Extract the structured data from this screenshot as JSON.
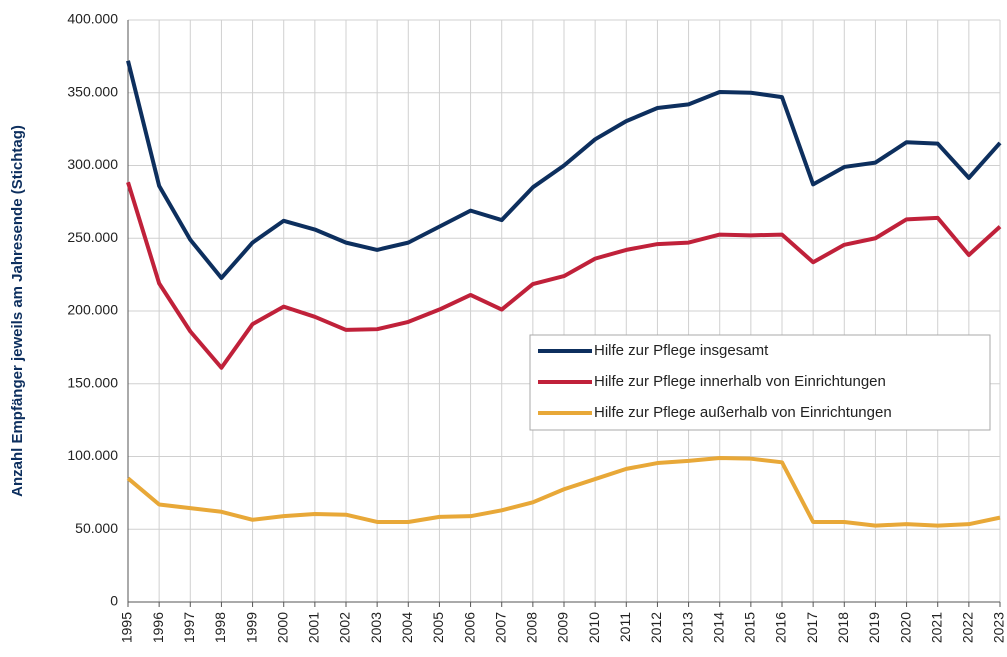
{
  "chart_data": {
    "type": "line",
    "y_label": "Anzahl Empfänger jeweils am Jahresende (Stichtag)",
    "categories": [
      "1995",
      "1996",
      "1997",
      "1998",
      "1999",
      "2000",
      "2001",
      "2002",
      "2003",
      "2004",
      "2005",
      "2006",
      "2007",
      "2008",
      "2009",
      "2010",
      "2011",
      "2012",
      "2013",
      "2014",
      "2015",
      "2016",
      "2017",
      "2018",
      "2019",
      "2020",
      "2021",
      "2022",
      "2023"
    ],
    "series": [
      {
        "name": "Hilfe zur Pflege insgesamt",
        "color": "#0d2f5e",
        "values": [
          372000,
          286000,
          249000,
          222700,
          247000,
          262000,
          256000,
          247000,
          242000,
          247000,
          258000,
          269000,
          262500,
          285000,
          300000,
          318000,
          330500,
          339500,
          342000,
          350500,
          350000,
          347000,
          287000,
          299000,
          302000,
          316000,
          315000,
          291500,
          315500
        ]
      },
      {
        "name": "Hilfe zur Pflege innerhalb von Einrichtungen",
        "color": "#c0213a",
        "values": [
          288500,
          219000,
          186000,
          161000,
          191000,
          203000,
          196000,
          187000,
          187500,
          192500,
          201000,
          211000,
          201000,
          218500,
          224000,
          236000,
          242000,
          246000,
          247000,
          252500,
          252000,
          252500,
          233500,
          245500,
          250000,
          263000,
          264000,
          238500,
          258000
        ]
      },
      {
        "name": "Hilfe zur Pflege außerhalb von Einrichtungen",
        "color": "#e8a838",
        "values": [
          85000,
          67000,
          64500,
          62000,
          56500,
          59000,
          60500,
          60000,
          55000,
          55000,
          58500,
          59000,
          63000,
          68500,
          77500,
          84500,
          91500,
          95500,
          97000,
          99000,
          98500,
          96000,
          55000,
          55000,
          52500,
          53500,
          52500,
          53500,
          58000
        ]
      }
    ],
    "ylim": [
      0,
      400000
    ],
    "yticks": [
      0,
      {
        "value": 50000,
        "label": "50.000"
      },
      {
        "value": 100000,
        "label": "100.000"
      },
      {
        "value": 150000,
        "label": "150.000"
      },
      {
        "value": 200000,
        "label": "200.000"
      },
      {
        "value": 250000,
        "label": "250.000"
      },
      {
        "value": 300000,
        "label": "300.000"
      },
      {
        "value": 350000,
        "label": "350.000"
      },
      {
        "value": 400000,
        "label": "400.000"
      }
    ],
    "grid": true,
    "legend": "right"
  }
}
